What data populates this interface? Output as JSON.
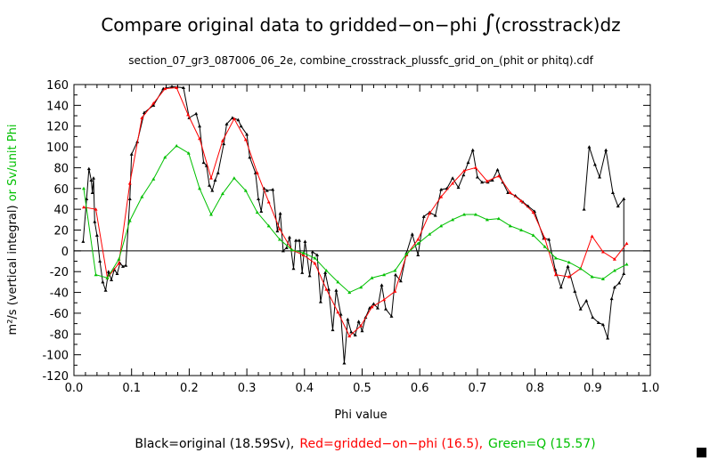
{
  "chart_data": {
    "type": "line",
    "title": "Compare original data to gridded−on−phi",
    "title_integral": "∫",
    "title_suffix": "(crosstrack)dz",
    "subtitle": "section_07_gr3_087006_06_2e, combine_crosstrack_plussfc_grid_on_(phit or phitq).cdf",
    "xlabel": "Phi value",
    "ylabel_black": "m²/s (vertical integral)",
    "ylabel_green": " or Sv/unit Phi",
    "xlim": [
      0,
      1
    ],
    "ylim": [
      -120,
      160
    ],
    "xticks": [
      "0.0",
      "0.1",
      "0.2",
      "0.3",
      "0.4",
      "0.5",
      "0.6",
      "0.7",
      "0.8",
      "0.9",
      "1.0"
    ],
    "yticks": [
      "-120",
      "-100",
      "-80",
      "-60",
      "-40",
      "-20",
      "0",
      "20",
      "40",
      "60",
      "80",
      "100",
      "120",
      "140",
      "160"
    ],
    "legend": {
      "black": "Black=original (18.59Sv),",
      "red": "Red=gridded−on−phi (16.5),",
      "green": "Green=Q (15.57)"
    },
    "colors": {
      "black": "#000000",
      "red": "#ff0000",
      "green": "#00c000"
    },
    "series": [
      {
        "name": "original",
        "color": "#000000",
        "points": [
          [
            0.016,
            9
          ],
          [
            0.022,
            50
          ],
          [
            0.026,
            79
          ],
          [
            0.03,
            68
          ],
          [
            0.032,
            56
          ],
          [
            0.034,
            70
          ],
          [
            0.036,
            28
          ],
          [
            0.04,
            15
          ],
          [
            0.045,
            -10
          ],
          [
            0.05,
            -30
          ],
          [
            0.055,
            -38
          ],
          [
            0.06,
            -20
          ],
          [
            0.065,
            -28
          ],
          [
            0.07,
            -18
          ],
          [
            0.075,
            -22
          ],
          [
            0.08,
            -12
          ],
          [
            0.085,
            -15
          ],
          [
            0.09,
            -14
          ],
          [
            0.097,
            50
          ],
          [
            0.1,
            93
          ],
          [
            0.11,
            105
          ],
          [
            0.122,
            133
          ],
          [
            0.138,
            140
          ],
          [
            0.155,
            156
          ],
          [
            0.17,
            158
          ],
          [
            0.19,
            157
          ],
          [
            0.2,
            128
          ],
          [
            0.212,
            132
          ],
          [
            0.218,
            120
          ],
          [
            0.225,
            85
          ],
          [
            0.23,
            82
          ],
          [
            0.235,
            63
          ],
          [
            0.24,
            58
          ],
          [
            0.245,
            68
          ],
          [
            0.25,
            75
          ],
          [
            0.26,
            103
          ],
          [
            0.265,
            122
          ],
          [
            0.275,
            128
          ],
          [
            0.285,
            126
          ],
          [
            0.29,
            120
          ],
          [
            0.3,
            112
          ],
          [
            0.305,
            90
          ],
          [
            0.315,
            75
          ],
          [
            0.32,
            50
          ],
          [
            0.325,
            38
          ],
          [
            0.33,
            60
          ],
          [
            0.335,
            58
          ],
          [
            0.345,
            59
          ],
          [
            0.353,
            19
          ],
          [
            0.358,
            36
          ],
          [
            0.363,
            0
          ],
          [
            0.369,
            3
          ],
          [
            0.374,
            13
          ],
          [
            0.381,
            -17
          ],
          [
            0.385,
            10
          ],
          [
            0.391,
            10
          ],
          [
            0.396,
            -21
          ],
          [
            0.401,
            9
          ],
          [
            0.409,
            -24
          ],
          [
            0.414,
            -1
          ],
          [
            0.422,
            -4
          ],
          [
            0.428,
            -49
          ],
          [
            0.436,
            -21
          ],
          [
            0.442,
            -37
          ],
          [
            0.449,
            -76
          ],
          [
            0.455,
            -38
          ],
          [
            0.463,
            -61
          ],
          [
            0.469,
            -108
          ],
          [
            0.475,
            -66
          ],
          [
            0.481,
            -78
          ],
          [
            0.488,
            -81
          ],
          [
            0.494,
            -68
          ],
          [
            0.5,
            -77
          ],
          [
            0.506,
            -64
          ],
          [
            0.513,
            -55
          ],
          [
            0.52,
            -51
          ],
          [
            0.527,
            -55
          ],
          [
            0.534,
            -33
          ],
          [
            0.541,
            -56
          ],
          [
            0.551,
            -63
          ],
          [
            0.558,
            -23
          ],
          [
            0.567,
            -29
          ],
          [
            0.577,
            -2
          ],
          [
            0.587,
            16
          ],
          [
            0.597,
            -4
          ],
          [
            0.607,
            33
          ],
          [
            0.617,
            37
          ],
          [
            0.627,
            34
          ],
          [
            0.637,
            59
          ],
          [
            0.647,
            60
          ],
          [
            0.657,
            70
          ],
          [
            0.667,
            61
          ],
          [
            0.676,
            73
          ],
          [
            0.684,
            85
          ],
          [
            0.692,
            97
          ],
          [
            0.7,
            71
          ],
          [
            0.708,
            66
          ],
          [
            0.718,
            66
          ],
          [
            0.726,
            68
          ],
          [
            0.735,
            78
          ],
          [
            0.744,
            66
          ],
          [
            0.753,
            56
          ],
          [
            0.766,
            53
          ],
          [
            0.779,
            47
          ],
          [
            0.788,
            43
          ],
          [
            0.799,
            38
          ],
          [
            0.815,
            12
          ],
          [
            0.824,
            11
          ],
          [
            0.835,
            -18
          ],
          [
            0.845,
            -35
          ],
          [
            0.857,
            -15
          ],
          [
            0.869,
            -39
          ],
          [
            0.879,
            -56
          ],
          [
            0.889,
            -48
          ],
          [
            0.9,
            -64
          ],
          [
            0.91,
            -69
          ],
          [
            0.918,
            -71
          ],
          [
            0.926,
            -84
          ],
          [
            0.933,
            -46
          ],
          [
            0.938,
            -35
          ],
          [
            0.946,
            -31
          ],
          [
            0.954,
            -22
          ],
          [
            0.954,
            50
          ],
          [
            0.944,
            43
          ],
          [
            0.935,
            56
          ],
          [
            0.923,
            97
          ],
          [
            0.912,
            71
          ],
          [
            0.904,
            83
          ],
          [
            0.894,
            100
          ],
          [
            0.885,
            40
          ]
        ]
      },
      {
        "name": "gridded-on-phi",
        "color": "#ff0000",
        "points": [
          [
            0.017,
            42
          ],
          [
            0.038,
            40
          ],
          [
            0.058,
            -26
          ],
          [
            0.078,
            -12
          ],
          [
            0.097,
            65
          ],
          [
            0.118,
            128
          ],
          [
            0.138,
            142
          ],
          [
            0.158,
            156
          ],
          [
            0.178,
            157
          ],
          [
            0.198,
            131
          ],
          [
            0.218,
            108
          ],
          [
            0.238,
            70
          ],
          [
            0.258,
            106
          ],
          [
            0.278,
            127
          ],
          [
            0.298,
            107
          ],
          [
            0.318,
            75
          ],
          [
            0.338,
            47
          ],
          [
            0.357,
            21
          ],
          [
            0.378,
            1
          ],
          [
            0.398,
            -4
          ],
          [
            0.418,
            -12
          ],
          [
            0.438,
            -37
          ],
          [
            0.458,
            -59
          ],
          [
            0.478,
            -82
          ],
          [
            0.498,
            -72
          ],
          [
            0.517,
            -54
          ],
          [
            0.538,
            -47
          ],
          [
            0.557,
            -39
          ],
          [
            0.577,
            -4
          ],
          [
            0.597,
            11
          ],
          [
            0.617,
            36
          ],
          [
            0.637,
            52
          ],
          [
            0.657,
            65
          ],
          [
            0.677,
            77
          ],
          [
            0.697,
            80
          ],
          [
            0.717,
            67
          ],
          [
            0.737,
            72
          ],
          [
            0.757,
            56
          ],
          [
            0.776,
            48
          ],
          [
            0.797,
            37
          ],
          [
            0.817,
            12
          ],
          [
            0.836,
            -23
          ],
          [
            0.859,
            -25
          ],
          [
            0.879,
            -17
          ],
          [
            0.899,
            14
          ],
          [
            0.918,
            -1
          ],
          [
            0.938,
            -8
          ],
          [
            0.959,
            7
          ]
        ]
      },
      {
        "name": "Q",
        "color": "#00c000",
        "points": [
          [
            0.017,
            60
          ],
          [
            0.038,
            -23
          ],
          [
            0.058,
            -26
          ],
          [
            0.078,
            -8
          ],
          [
            0.097,
            29
          ],
          [
            0.118,
            52
          ],
          [
            0.138,
            69
          ],
          [
            0.158,
            90
          ],
          [
            0.178,
            101
          ],
          [
            0.199,
            94
          ],
          [
            0.218,
            60
          ],
          [
            0.238,
            35
          ],
          [
            0.258,
            55
          ],
          [
            0.278,
            70
          ],
          [
            0.298,
            58
          ],
          [
            0.318,
            37
          ],
          [
            0.338,
            24
          ],
          [
            0.357,
            11
          ],
          [
            0.378,
            1
          ],
          [
            0.398,
            -2
          ],
          [
            0.418,
            -7
          ],
          [
            0.438,
            -19
          ],
          [
            0.458,
            -30
          ],
          [
            0.478,
            -40
          ],
          [
            0.498,
            -35
          ],
          [
            0.517,
            -26
          ],
          [
            0.538,
            -23
          ],
          [
            0.557,
            -19
          ],
          [
            0.577,
            -3
          ],
          [
            0.597,
            7
          ],
          [
            0.617,
            16
          ],
          [
            0.637,
            24
          ],
          [
            0.657,
            30
          ],
          [
            0.677,
            35
          ],
          [
            0.697,
            35
          ],
          [
            0.717,
            30
          ],
          [
            0.737,
            31
          ],
          [
            0.757,
            24
          ],
          [
            0.776,
            20
          ],
          [
            0.797,
            15
          ],
          [
            0.817,
            4
          ],
          [
            0.836,
            -7
          ],
          [
            0.859,
            -11
          ],
          [
            0.879,
            -17
          ],
          [
            0.899,
            -25
          ],
          [
            0.918,
            -27
          ],
          [
            0.938,
            -19
          ],
          [
            0.959,
            -13
          ]
        ]
      }
    ]
  }
}
